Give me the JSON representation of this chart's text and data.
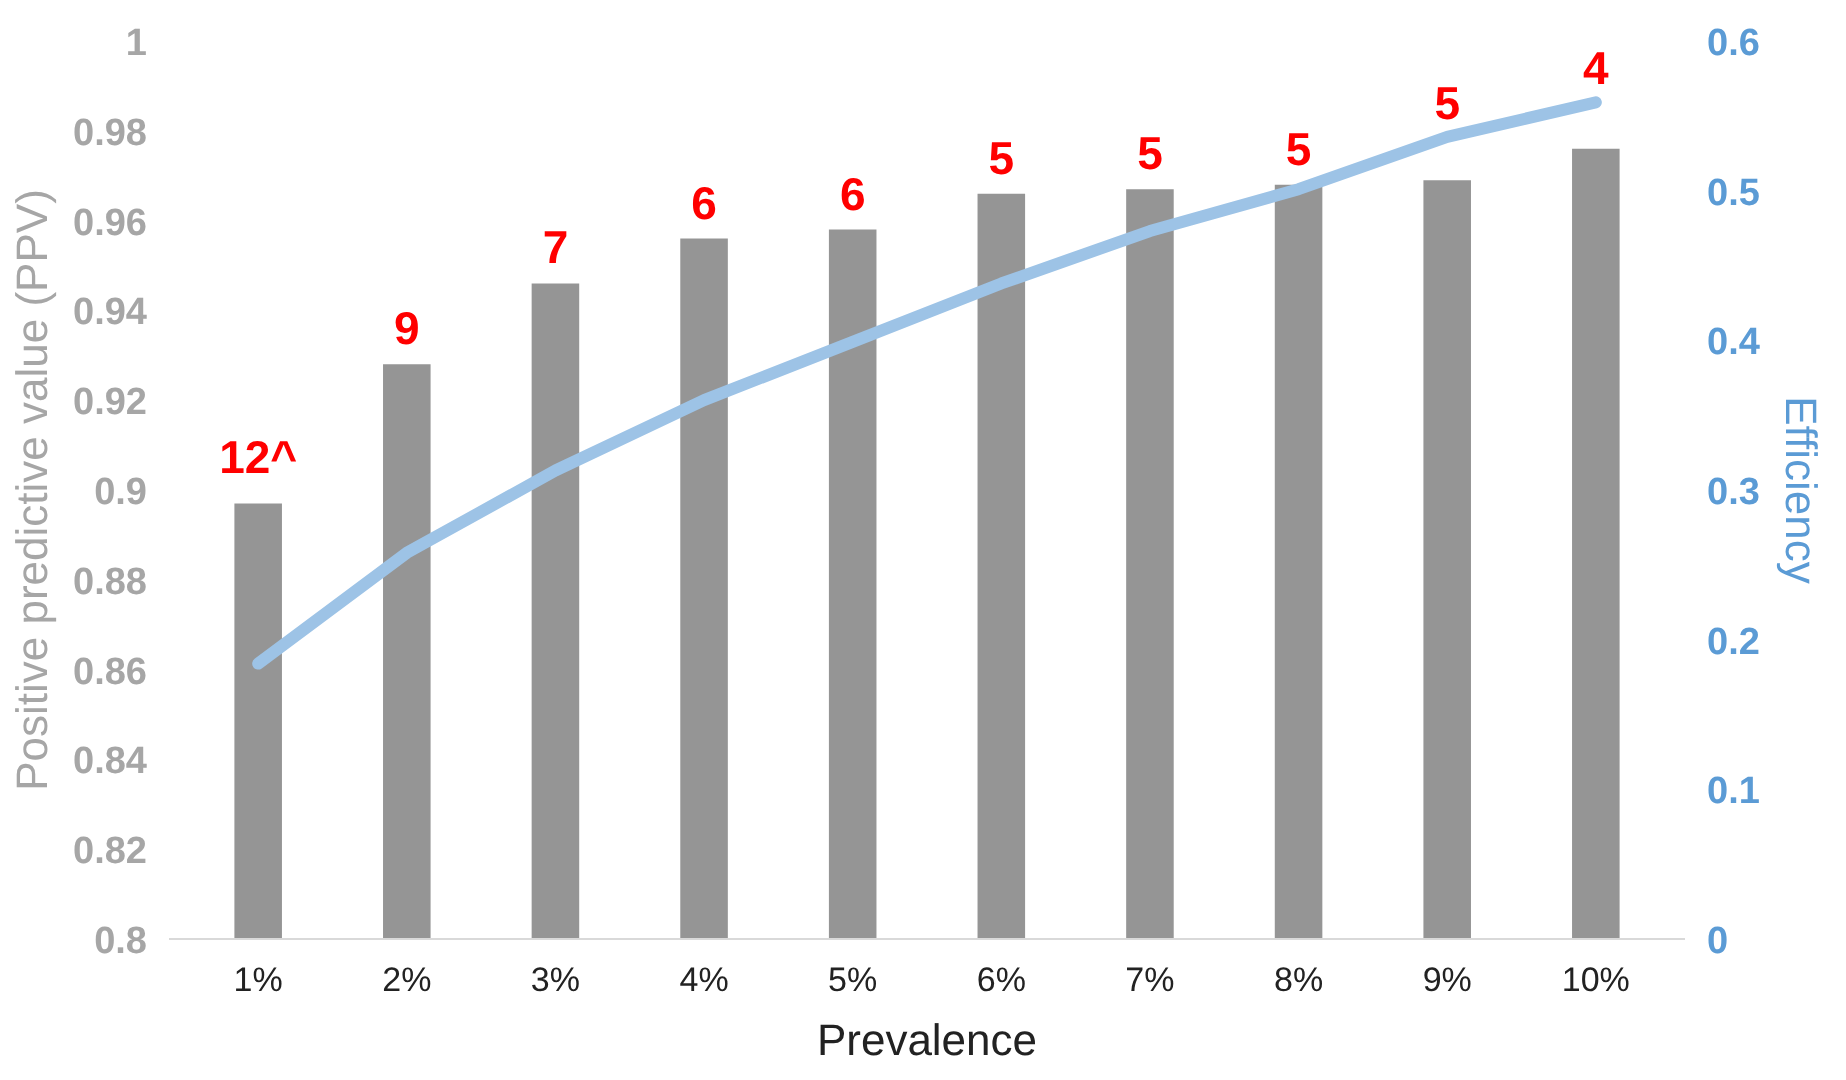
{
  "chart_data": {
    "type": "bar",
    "xlabel": "Prevalence",
    "ylabel": "Positive predictive value (PPV)",
    "y2label": "Efficiency",
    "categories": [
      "1%",
      "2%",
      "3%",
      "4%",
      "5%",
      "6%",
      "7%",
      "8%",
      "9%",
      "10%"
    ],
    "series": [
      {
        "color": "#959595",
        "values": [
          0.897,
          0.928,
          0.946,
          0.956,
          0.958,
          0.966,
          0.967,
          0.968,
          0.969,
          0.976
        ]
      },
      {
        "type": "line",
        "axis": "y2",
        "color": "#9dc3e6",
        "values": [
          0.184,
          0.258,
          0.313,
          0.36,
          0.399,
          0.438,
          0.473,
          0.501,
          0.536,
          0.559
        ]
      }
    ],
    "annotations": [
      {
        "text": "12^",
        "x": "1%",
        "y": 0.897
      },
      {
        "text": "9",
        "x": "2%",
        "y": 0.928
      },
      {
        "text": "7",
        "x": "3%",
        "y": 0.946
      },
      {
        "text": "6",
        "x": "4%",
        "y": 0.956
      },
      {
        "text": "6",
        "x": "5%",
        "y": 0.958
      },
      {
        "text": "5",
        "x": "6%",
        "y": 0.966
      },
      {
        "text": "5",
        "x": "7%",
        "y": 0.967
      },
      {
        "text": "5",
        "x": "8%",
        "y": 0.968
      },
      {
        "text": "5",
        "x": "9%",
        "y": 0.969
      },
      {
        "text": "4",
        "x": "10%",
        "y": 0.976
      }
    ],
    "ylim": [
      0.8,
      1
    ],
    "yticks": [
      0.8,
      0.82,
      0.84,
      0.86,
      0.88,
      0.9,
      0.92,
      0.94,
      0.96,
      0.98,
      1
    ],
    "y2lim": [
      0,
      0.6
    ],
    "y2ticks": [
      0,
      0.1,
      0.2,
      0.3,
      0.4,
      0.5,
      0.6
    ],
    "grid": false,
    "legend": false
  }
}
